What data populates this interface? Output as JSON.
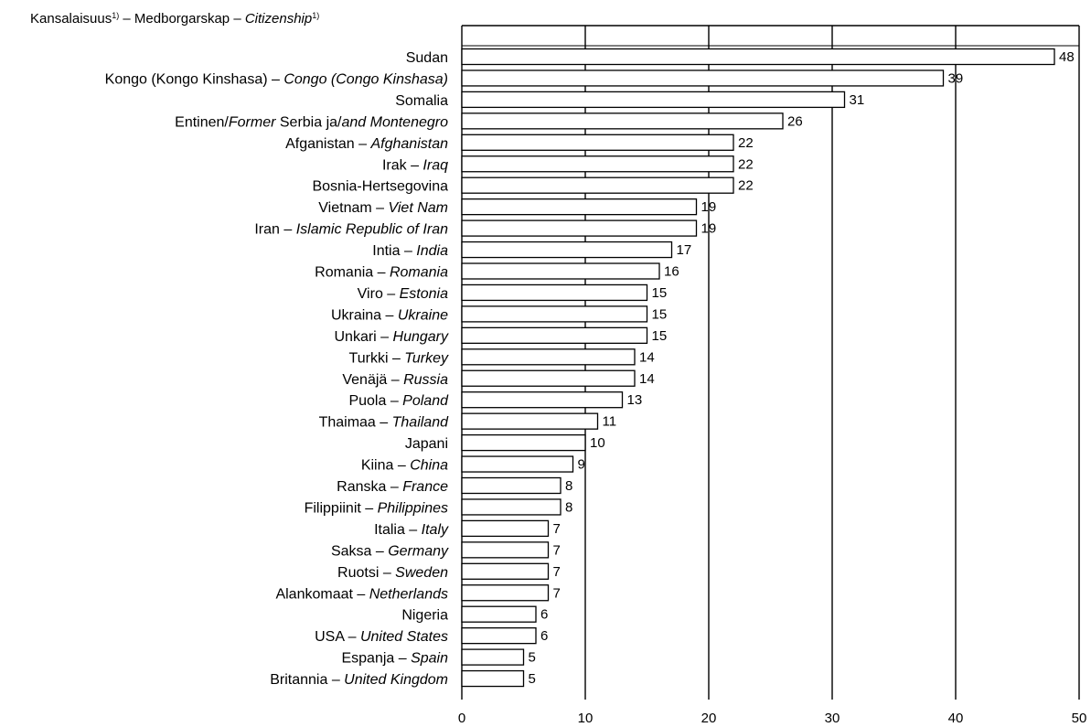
{
  "chart_data": {
    "type": "bar",
    "orientation": "horizontal",
    "header": {
      "fi": "Kansalaisuus",
      "sv": "Medborgarskap",
      "en": "Citizenship",
      "footnote_mark": "1)",
      "sep": " – "
    },
    "categories": [
      {
        "plain": "Sudan",
        "italic": ""
      },
      {
        "plain": "Kongo (Kongo Kinshasa) – ",
        "italic": "Congo (Congo Kinshasa)"
      },
      {
        "plain": "Somalia",
        "italic": ""
      },
      {
        "segments": [
          {
            "t": "Entinen/",
            "i": false
          },
          {
            "t": "Former",
            "i": true
          },
          {
            "t": " Serbia ja/",
            "i": false
          },
          {
            "t": "and Montenegro",
            "i": true
          }
        ]
      },
      {
        "plain": "Afganistan – ",
        "italic": "Afghanistan"
      },
      {
        "plain": "Irak – ",
        "italic": "Iraq"
      },
      {
        "plain": "Bosnia-Hertsegovina",
        "italic": ""
      },
      {
        "plain": "Vietnam – ",
        "italic": "Viet Nam"
      },
      {
        "plain": "Iran – ",
        "italic": "Islamic Republic of Iran"
      },
      {
        "plain": "Intia – ",
        "italic": "India"
      },
      {
        "plain": "Romania – ",
        "italic": "Romania"
      },
      {
        "plain": "Viro – ",
        "italic": "Estonia"
      },
      {
        "plain": "Ukraina – ",
        "italic": "Ukraine"
      },
      {
        "plain": "Unkari – ",
        "italic": "Hungary"
      },
      {
        "plain": "Turkki – ",
        "italic": "Turkey"
      },
      {
        "plain": "Venäjä – ",
        "italic": "Russia"
      },
      {
        "plain": "Puola – ",
        "italic": "Poland"
      },
      {
        "plain": "Thaimaa – ",
        "italic": "Thailand"
      },
      {
        "plain": "Japani",
        "italic": ""
      },
      {
        "plain": "Kiina – ",
        "italic": "China"
      },
      {
        "plain": "Ranska – ",
        "italic": "France"
      },
      {
        "plain": "Filippiinit – ",
        "italic": "Philippines"
      },
      {
        "plain": "Italia – ",
        "italic": "Italy"
      },
      {
        "plain": "Saksa – ",
        "italic": "Germany"
      },
      {
        "plain": "Ruotsi – ",
        "italic": "Sweden"
      },
      {
        "plain": "Alankomaat – ",
        "italic": "Netherlands"
      },
      {
        "plain": "Nigeria",
        "italic": ""
      },
      {
        "plain": "USA – ",
        "italic": "United States"
      },
      {
        "plain": "Espanja – ",
        "italic": "Spain"
      },
      {
        "plain": "Britannia – ",
        "italic": "United Kingdom"
      }
    ],
    "values": [
      48,
      39,
      31,
      26,
      22,
      22,
      22,
      19,
      19,
      17,
      16,
      15,
      15,
      15,
      14,
      14,
      13,
      11,
      10,
      9,
      8,
      8,
      7,
      7,
      7,
      7,
      6,
      6,
      5,
      5
    ],
    "xlim": [
      0,
      50
    ],
    "xticks": [
      0,
      10,
      20,
      30,
      40,
      50
    ],
    "grid": "vertical",
    "bar_fill": "#ffffff",
    "bar_stroke": "#000000"
  }
}
